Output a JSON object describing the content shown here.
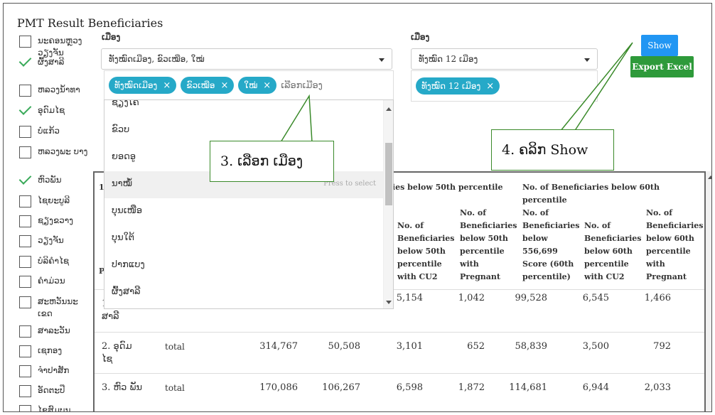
{
  "page_title": "PMT Result Beneficiaries",
  "provinces": [
    {
      "label": "ນະຄອນຫຼວງ ວຽງຈັນ",
      "checked": false
    },
    {
      "label": "ຜົ້ງສາລີ",
      "checked": true
    },
    {
      "label": "ຫລວງນ້ຳທາ",
      "checked": false
    },
    {
      "label": "ອຸດົມໄຊ",
      "checked": true
    },
    {
      "label": "ບໍ່ແກ້ວ",
      "checked": false
    },
    {
      "label": "ຫລວງພະ ບາງ",
      "checked": false
    },
    {
      "label": "ຫົວພັນ",
      "checked": true
    },
    {
      "label": "ໄຊຍະບູລີ",
      "checked": false
    },
    {
      "label": "ຊຽງຂວາງ",
      "checked": false
    },
    {
      "label": "ວຽງຈັນ",
      "checked": false
    },
    {
      "label": "ບໍລິຄໍາໄຊ",
      "checked": false
    },
    {
      "label": "ຄໍາມ່ວນ",
      "checked": false
    },
    {
      "label": "ສະຫວັນນະ ເຂດ",
      "checked": false
    },
    {
      "label": "ສາລະວັນ",
      "checked": false
    },
    {
      "label": "ເຊກອງ",
      "checked": false
    },
    {
      "label": "ຈໍາປາສັກ",
      "checked": false
    },
    {
      "label": "ອັດຕະປື",
      "checked": false
    },
    {
      "label": "ໄຊສົມບູນ",
      "checked": false
    }
  ],
  "district_select": {
    "label": "ເມືອງ",
    "value": "ທັງໝົດເມືອງ, ຂົວເໝືອ, ໃໝ່",
    "tags": [
      "ທັງໝົດເມືອງ",
      "ຂົວເໝືອ",
      "ໃໝ່"
    ],
    "placeholder": "ເລືອກເມືອງ",
    "options": [
      "ຊຽງໂຄ້",
      "ຂົວບ",
      "ຍອດອູ",
      "ນາໝໍ້",
      "ບຸນເໜືອ",
      "ບຸນໃຕ້",
      "ປາກແບງ",
      "ຜົ້ງສາລີ"
    ],
    "highlighted_option": "ນາໝໍ້",
    "hint": "Press to select"
  },
  "district_select_2": {
    "label": "ເມືອງ",
    "value": "ທັງໝົດ 12 ເມືອງ",
    "tags": [
      "ທັງໝົດ 12 ເມືອງ"
    ]
  },
  "buttons": {
    "show": "Show",
    "export": "Export Excel"
  },
  "callouts": {
    "step3": "3. ເລືອກ ເມືອງ",
    "step4": "4. ຄລິກ Show"
  },
  "table": {
    "group_headers": [
      "aries below 50th percentile",
      "No. of Beneficiaries below 60th percentile"
    ],
    "headers": [
      "No. of Beneficiaries below 50th percentile with CU2",
      "No. of Beneficiaries below 50th percentile with Pregnant",
      "No. of Beneficiaries below 556,699 Score (60th percentile)",
      "No. of Beneficiaries below 60th percentile with CU2",
      "No. of Beneficiaries below 60th percentile with Pregnant"
    ],
    "rows": [
      {
        "name": "1. ຜົ້ງ ສາລີ",
        "type": "",
        "c1": "",
        "c2": "",
        "c3": "5,154",
        "c4": "1,042",
        "c5": "99,528",
        "c6": "6,545",
        "c7": "1,466"
      },
      {
        "name": "2. ອຸດົມ ໄຊ",
        "type": "total",
        "c1": "314,767",
        "c2": "50,508",
        "c3": "3,101",
        "c4": "652",
        "c5": "58,839",
        "c6": "3,500",
        "c7": "792"
      },
      {
        "name": "3. ຫົວ ພັນ",
        "type": "total",
        "c1": "170,086",
        "c2": "106,267",
        "c3": "6,598",
        "c4": "1,872",
        "c5": "114,681",
        "c6": "6,944",
        "c7": "2,033"
      }
    ]
  }
}
